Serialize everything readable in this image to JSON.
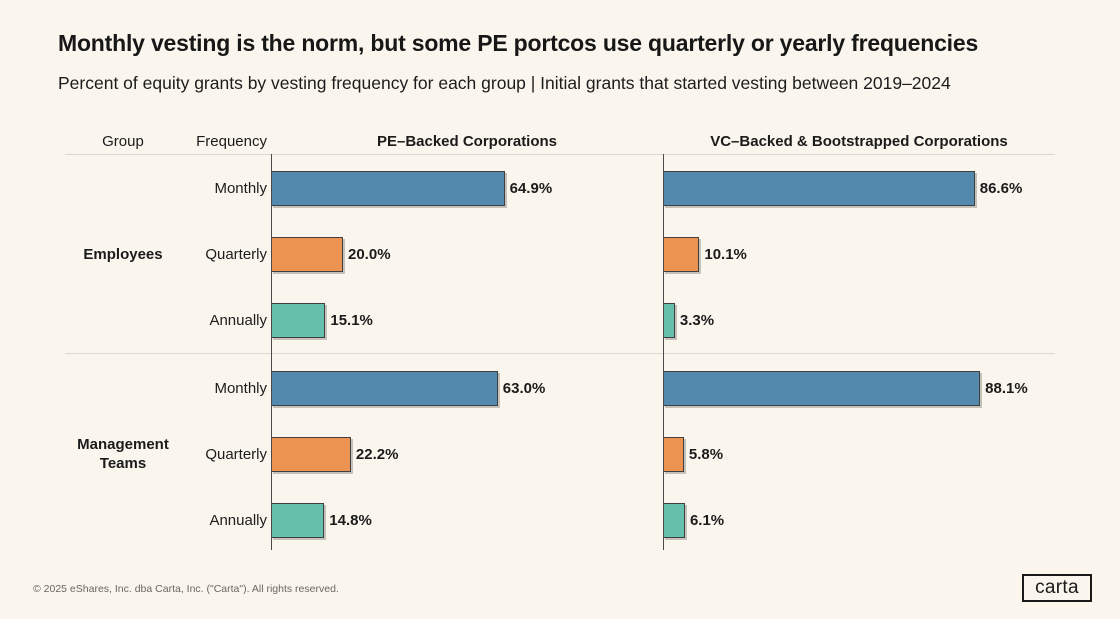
{
  "header": {
    "title": "Monthly vesting is the norm, but some PE portcos use quarterly or yearly frequencies",
    "subtitle": "Percent of equity grants by vesting frequency for each group | Initial grants that started vesting between 2019–2024"
  },
  "chart_data": {
    "type": "bar",
    "orientation": "horizontal",
    "value_unit": "percent",
    "xlim": [
      0,
      100
    ],
    "grid": false,
    "group_column_header": "Group",
    "frequency_column_header": "Frequency",
    "panel_headers": [
      "PE–Backed Corporations",
      "VC–Backed & Bootstrapped Corporations"
    ],
    "categories": [
      "Monthly",
      "Quarterly",
      "Annually"
    ],
    "category_colors": [
      "#5389AD",
      "#EC9352",
      "#66C0AC"
    ],
    "groups": [
      {
        "name": "Employees",
        "series": [
          {
            "panel": "PE–Backed Corporations",
            "values": [
              64.9,
              20.0,
              15.1
            ]
          },
          {
            "panel": "VC–Backed & Bootstrapped Corporations",
            "values": [
              86.6,
              10.1,
              3.3
            ]
          }
        ]
      },
      {
        "name": "Management Teams",
        "series": [
          {
            "panel": "PE–Backed Corporations",
            "values": [
              63.0,
              22.2,
              14.8
            ]
          },
          {
            "panel": "VC–Backed & Bootstrapped Corporations",
            "values": [
              88.1,
              5.8,
              6.1
            ]
          }
        ]
      }
    ]
  },
  "footer": {
    "copyright": "© 2025 eShares, Inc. dba Carta, Inc. (\"Carta\"). All rights reserved.",
    "logo_text": "carta"
  },
  "colors": {
    "background": "#FAF6EE",
    "text": "#1B1B1B",
    "grid_line": "#DDD8CE",
    "axis_line": "#4A4A4A",
    "bar_border": "#3F3F3F",
    "footer_text": "#6B675F"
  }
}
